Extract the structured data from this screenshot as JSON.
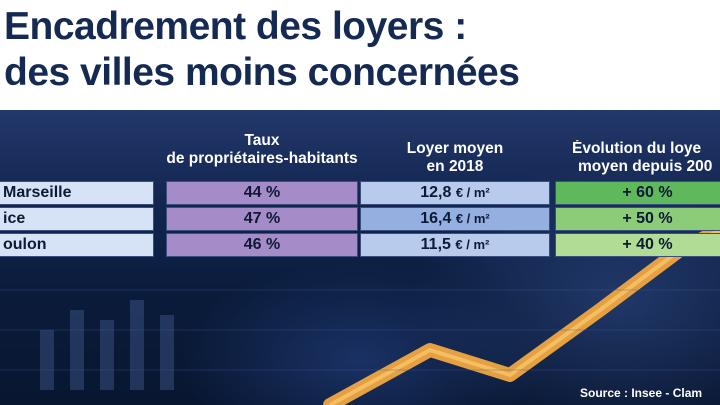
{
  "title": {
    "line1": "Encadrement des loyers :",
    "line2": "des villes moins concernées"
  },
  "table": {
    "headers": {
      "tenant_rate": [
        "Taux",
        "de propriétaires-habitants"
      ],
      "avg_rent": [
        "Loyer moyen",
        "en 2018"
      ],
      "rent_evolution": [
        "Évolution du loye",
        "moyen depuis 200"
      ]
    },
    "rows": [
      {
        "city": "Marseille",
        "tenant_rate": "44 %",
        "avg_rent": "12,8",
        "unit": "€ / m²",
        "rent_evolution": "+ 60 %"
      },
      {
        "city": "ice",
        "tenant_rate": "47 %",
        "avg_rent": "16,4",
        "unit": "€ / m²",
        "rent_evolution": "+ 50 %"
      },
      {
        "city": "oulon",
        "tenant_rate": "46 %",
        "avg_rent": "11,5",
        "unit": "€ / m²",
        "rent_evolution": "+ 40 %"
      }
    ]
  },
  "source": "Source : Insee - Clam",
  "colors": {
    "title": "#152a52",
    "tenant_cells": [
      "#a58bc8",
      "#a58bc8",
      "#a58bc8"
    ],
    "rent_cells": [
      "#b9cbec",
      "#94afe0",
      "#b9cbec"
    ],
    "evolution_cells": [
      "#5fb85c",
      "#8ccc78",
      "#b1dc95"
    ],
    "city_cells": "#d6e2f6",
    "background": "#0b1e3d",
    "trend_line": "#f0a640"
  }
}
